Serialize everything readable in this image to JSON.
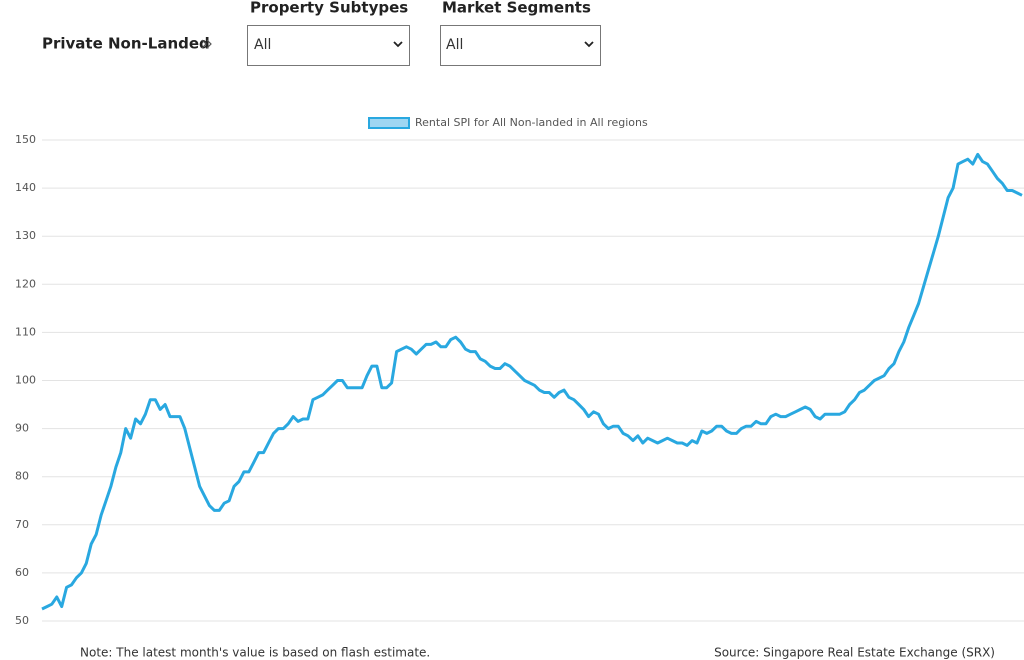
{
  "filters": {
    "breadcrumb": "Private Non-Landed",
    "items": [
      {
        "label": "Property Subtypes",
        "value": "All"
      },
      {
        "label": "Market Segments",
        "value": "All"
      }
    ]
  },
  "chart_data": {
    "type": "line",
    "series": [
      {
        "name": "Rental SPI for All Non-landed in All regions",
        "color": "#29a8e0",
        "values": [
          52.5,
          53,
          53.5,
          55,
          53,
          57,
          57.5,
          59,
          60,
          62,
          66,
          68,
          72,
          75,
          78,
          82,
          85,
          90,
          88,
          92,
          91,
          93,
          96,
          96,
          94,
          95,
          92.5,
          92.5,
          92.5,
          90,
          86,
          82,
          78,
          76,
          74,
          73,
          73,
          74.5,
          75,
          78,
          79,
          81,
          81,
          83,
          85,
          85,
          87,
          89,
          90,
          90,
          91,
          92.5,
          91.5,
          92,
          92,
          96,
          96.5,
          97,
          98,
          99,
          100,
          100,
          98.5,
          98.5,
          98.5,
          98.5,
          101,
          103,
          103,
          98.5,
          98.5,
          99.5,
          106,
          106.5,
          107,
          106.5,
          105.5,
          106.5,
          107.5,
          107.5,
          108,
          107,
          107,
          108.5,
          109,
          108,
          106.5,
          106,
          106,
          104.5,
          104,
          103,
          102.5,
          102.5,
          103.5,
          103,
          102,
          101,
          100,
          99.5,
          99,
          98,
          97.5,
          97.5,
          96.5,
          97.5,
          98,
          96.5,
          96,
          95,
          94,
          92.5,
          93.5,
          93,
          91,
          90,
          90.5,
          90.5,
          89,
          88.5,
          87.5,
          88.5,
          87,
          88,
          87.5,
          87,
          87.5,
          88,
          87.5,
          87,
          87,
          86.5,
          87.5,
          87,
          89.5,
          89,
          89.5,
          90.5,
          90.5,
          89.5,
          89,
          89,
          90,
          90.5,
          90.5,
          91.5,
          91,
          91,
          92.5,
          93,
          92.5,
          92.5,
          93,
          93.5,
          94,
          94.5,
          94,
          92.5,
          92,
          93,
          93,
          93,
          93,
          93.5,
          95,
          96,
          97.5,
          98,
          99,
          100,
          100.5,
          101,
          102.5,
          103.5,
          106,
          108,
          111,
          113.5,
          116,
          119.5,
          123,
          126.5,
          130,
          134,
          138,
          140,
          145,
          145.5,
          146,
          145,
          147,
          145.5,
          145,
          143.5,
          142,
          141,
          139.5,
          139.5,
          139,
          138.5
        ]
      }
    ],
    "ylim": [
      50,
      150
    ],
    "yticks": [
      50,
      60,
      70,
      80,
      90,
      100,
      110,
      120,
      130,
      140,
      150
    ],
    "grid": true,
    "legend": "top"
  },
  "footer": {
    "note": "Note: The latest month's value is based on flash estimate.",
    "source": "Source: Singapore Real Estate Exchange (SRX)"
  }
}
